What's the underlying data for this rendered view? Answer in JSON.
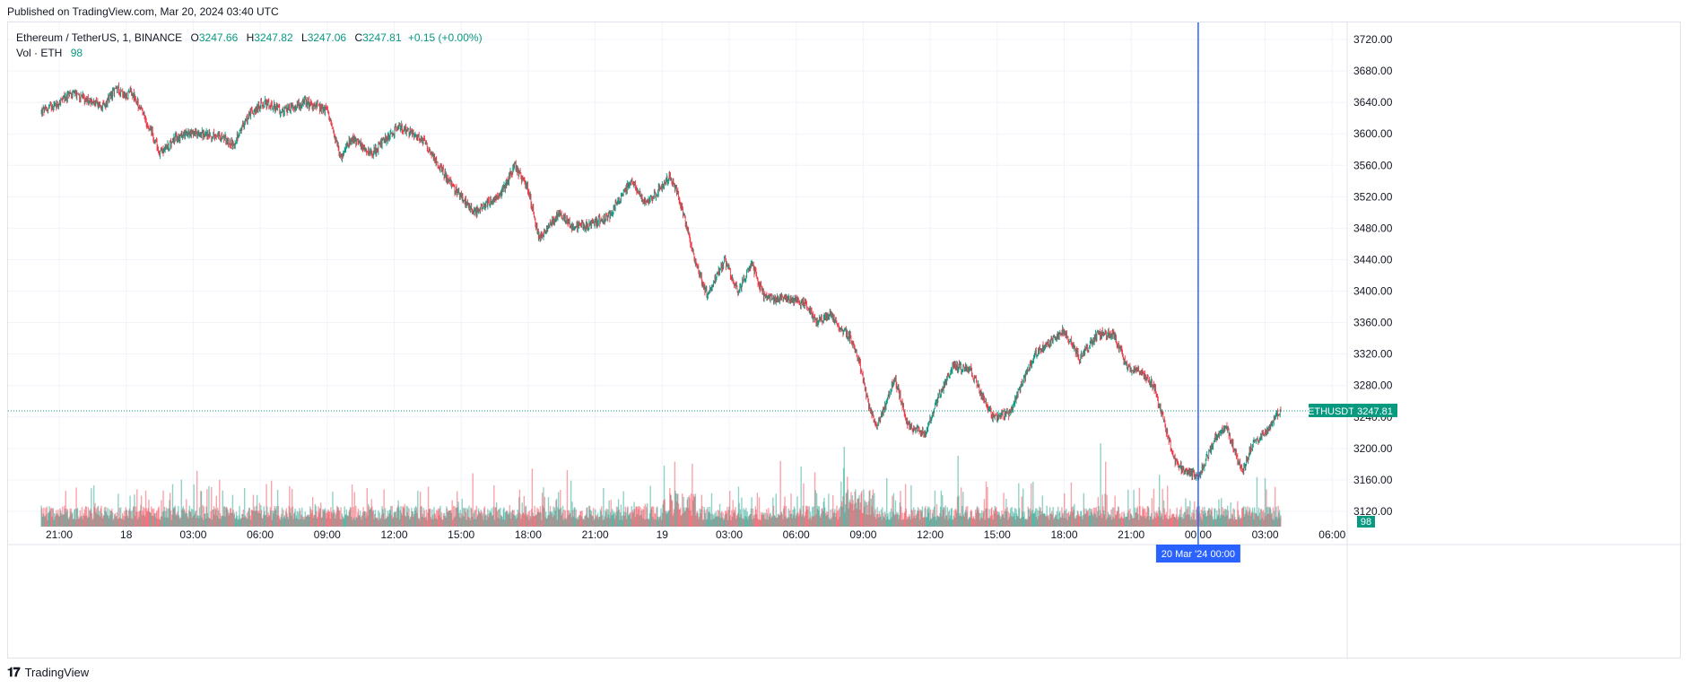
{
  "published": "Published on TradingView.com, Mar 20, 2024 03:40 UTC",
  "legend": {
    "symbol": "Ethereum / TetherUS, 1, BINANCE",
    "o_label": "O",
    "o_value": "3247.66",
    "h_label": "H",
    "h_value": "3247.82",
    "l_label": "L",
    "l_value": "3247.06",
    "c_label": "C",
    "c_value": "3247.81",
    "change": "+0.15 (+0.00%)",
    "vol_label": "Vol · ETH",
    "vol_value": "98"
  },
  "price_tag": {
    "symbol": "ETHUSDT",
    "value": "3247.81"
  },
  "crosshair_label": "20 Mar '24   00:00",
  "volume_tag": "98",
  "brand": "TradingView",
  "colors": {
    "up": "#089981",
    "down": "#f23645",
    "crosshair": "#2962ff",
    "grid": "#f0f3fa",
    "tag": "#089981"
  },
  "chart_data": {
    "type": "candlestick",
    "title": "Ethereum / TetherUS, 1, BINANCE",
    "ylim": [
      3110,
      3730
    ],
    "y_ticks": [
      3720,
      3680,
      3640,
      3600,
      3560,
      3520,
      3480,
      3440,
      3400,
      3360,
      3320,
      3280,
      3240,
      3200,
      3160,
      3120
    ],
    "y_tick_labels": [
      "3720.00",
      "3680.00",
      "3640.00",
      "3600.00",
      "3560.00",
      "3520.00",
      "3480.00",
      "3440.00",
      "3400.00",
      "3360.00",
      "3320.00",
      "3280.00",
      "3240.00",
      "3200.00",
      "3160.00",
      "3120.00"
    ],
    "x_range_hours": [
      -0.8,
      34.5
    ],
    "x_ticks": [
      {
        "label": "21:00",
        "h": 0
      },
      {
        "label": "18",
        "h": 3
      },
      {
        "label": "03:00",
        "h": 6
      },
      {
        "label": "06:00",
        "h": 9
      },
      {
        "label": "09:00",
        "h": 12
      },
      {
        "label": "12:00",
        "h": 15
      },
      {
        "label": "15:00",
        "h": 18
      },
      {
        "label": "18:00",
        "h": 21
      },
      {
        "label": "21:00",
        "h": 24
      },
      {
        "label": "19",
        "h": 27
      },
      {
        "label": "03:00",
        "h": 30
      },
      {
        "label": "06:00",
        "h": 33
      },
      {
        "label": "09:00",
        "h": 36
      },
      {
        "label": "12:00",
        "h": 39
      },
      {
        "label": "15:00",
        "h": 42
      },
      {
        "label": "18:00",
        "h": 45
      },
      {
        "label": "21:00",
        "h": 48
      },
      {
        "label": "00:00",
        "h": 51
      },
      {
        "label": "03:00",
        "h": 54
      },
      {
        "label": "06:00",
        "h": 57
      }
    ],
    "price_path": [
      [
        -0.8,
        3628
      ],
      [
        0,
        3640
      ],
      [
        0.6,
        3652
      ],
      [
        1.3,
        3643
      ],
      [
        2.0,
        3635
      ],
      [
        2.6,
        3660
      ],
      [
        3.0,
        3645
      ],
      [
        3.2,
        3655
      ],
      [
        4.1,
        3605
      ],
      [
        4.5,
        3575
      ],
      [
        5.2,
        3595
      ],
      [
        6.0,
        3602
      ],
      [
        7.4,
        3595
      ],
      [
        7.8,
        3585
      ],
      [
        8.5,
        3625
      ],
      [
        9.2,
        3640
      ],
      [
        10.0,
        3628
      ],
      [
        11.0,
        3640
      ],
      [
        12.0,
        3630
      ],
      [
        12.6,
        3570
      ],
      [
        13.1,
        3595
      ],
      [
        14.0,
        3575
      ],
      [
        15.2,
        3610
      ],
      [
        16.2,
        3595
      ],
      [
        17.0,
        3560
      ],
      [
        17.7,
        3530
      ],
      [
        18.6,
        3500
      ],
      [
        19.8,
        3525
      ],
      [
        20.4,
        3560
      ],
      [
        21.0,
        3530
      ],
      [
        21.5,
        3465
      ],
      [
        22.4,
        3500
      ],
      [
        23.0,
        3480
      ],
      [
        23.8,
        3485
      ],
      [
        24.6,
        3495
      ],
      [
        25.6,
        3540
      ],
      [
        26.3,
        3510
      ],
      [
        27.3,
        3545
      ],
      [
        27.7,
        3525
      ],
      [
        28.2,
        3470
      ],
      [
        28.5,
        3435
      ],
      [
        29.0,
        3395
      ],
      [
        29.8,
        3440
      ],
      [
        30.4,
        3400
      ],
      [
        31.0,
        3435
      ],
      [
        31.6,
        3390
      ],
      [
        32.4,
        3390
      ],
      [
        33.4,
        3385
      ],
      [
        33.9,
        3360
      ],
      [
        34.5,
        3370
      ]
    ],
    "price_path_b": [
      [
        34.5,
        3360
      ],
      [
        35.4,
        3342
      ],
      [
        35.8,
        3312
      ],
      [
        36.2,
        3260
      ],
      [
        36.6,
        3225
      ],
      [
        37.0,
        3255
      ],
      [
        37.4,
        3290
      ],
      [
        38.0,
        3230
      ],
      [
        38.8,
        3220
      ],
      [
        39.3,
        3260
      ],
      [
        40.0,
        3305
      ],
      [
        40.8,
        3300
      ],
      [
        41.2,
        3275
      ],
      [
        41.8,
        3240
      ],
      [
        42.6,
        3245
      ],
      [
        43.0,
        3275
      ],
      [
        43.7,
        3320
      ],
      [
        44.6,
        3340
      ],
      [
        45.0,
        3350
      ],
      [
        45.7,
        3315
      ],
      [
        46.5,
        3345
      ],
      [
        47.2,
        3345
      ],
      [
        47.8,
        3305
      ],
      [
        48.5,
        3295
      ],
      [
        49.0,
        3280
      ],
      [
        49.6,
        3220
      ],
      [
        50.0,
        3180
      ],
      [
        50.6,
        3170
      ],
      [
        51.0,
        3165
      ],
      [
        51.3,
        3182
      ],
      [
        51.8,
        3215
      ],
      [
        52.2,
        3230
      ],
      [
        52.6,
        3200
      ],
      [
        53.0,
        3170
      ],
      [
        53.5,
        3210
      ],
      [
        54.2,
        3225
      ],
      [
        54.5,
        3244
      ],
      [
        54.7,
        3248
      ]
    ],
    "last_price": 3247.81,
    "crosshair_h": 51.0,
    "volume_axis_max": 160,
    "volume_last": 98
  }
}
